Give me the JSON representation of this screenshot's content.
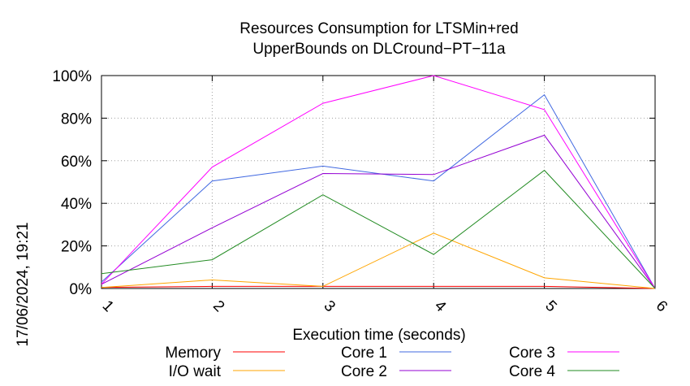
{
  "chart_data": {
    "type": "line",
    "title": [
      "Resources Consumption for LTSMin+red",
      "UpperBounds on DLCround−PT−11a"
    ],
    "xlabel": "Execution time (seconds)",
    "ylabel": "",
    "timestamp": "17/06/2024, 19:21",
    "x": [
      1,
      2,
      3,
      4,
      5,
      6
    ],
    "xlim": [
      1,
      6
    ],
    "ylim": [
      0,
      100
    ],
    "x_ticks": [
      "1",
      "2",
      "3",
      "4",
      "5",
      "6"
    ],
    "y_ticks": [
      "0%",
      "20%",
      "40%",
      "60%",
      "80%",
      "100%"
    ],
    "y_tick_values": [
      0,
      20,
      40,
      60,
      80,
      100
    ],
    "grid": true,
    "legend_position": "bottom",
    "series": [
      {
        "name": "Memory",
        "color": "#ff0000",
        "values": [
          0.5,
          1,
          1,
          1,
          1,
          0
        ]
      },
      {
        "name": "I/O wait",
        "color": "#ffa500",
        "values": [
          0.5,
          4,
          1,
          26,
          5,
          0
        ]
      },
      {
        "name": "Core 1",
        "color": "#4169e1",
        "values": [
          3,
          50.5,
          57.5,
          50.5,
          91,
          0
        ]
      },
      {
        "name": "Core 2",
        "color": "#9400d3",
        "values": [
          2,
          28.5,
          54,
          53.5,
          72,
          0
        ]
      },
      {
        "name": "Core 3",
        "color": "#ff00ff",
        "values": [
          2,
          57,
          87,
          100,
          84,
          0
        ]
      },
      {
        "name": "Core 4",
        "color": "#228b22",
        "values": [
          7,
          13.5,
          44,
          16,
          55.5,
          0
        ]
      }
    ]
  }
}
